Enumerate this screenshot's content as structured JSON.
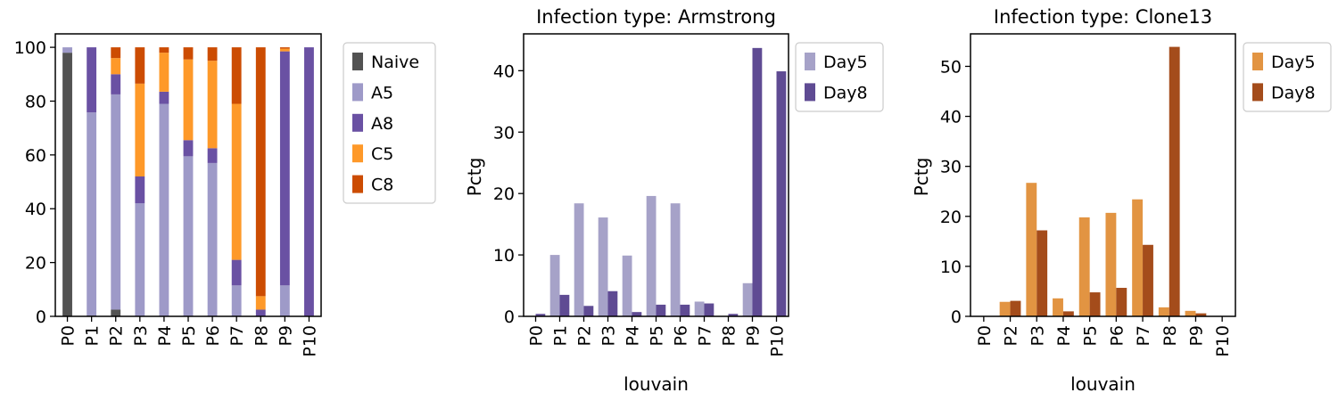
{
  "chart_data": [
    {
      "type": "bar",
      "stacked": true,
      "title": "",
      "xlabel": "",
      "ylabel": "",
      "ylim": [
        0,
        105
      ],
      "yticks": [
        0,
        20,
        40,
        60,
        80,
        100
      ],
      "categories": [
        "P0",
        "P1",
        "P2",
        "P3",
        "P4",
        "P5",
        "P6",
        "P7",
        "P8",
        "P9",
        "P10"
      ],
      "series": [
        {
          "name": "Naive",
          "color": "#525252",
          "values": [
            98,
            0.3,
            2.5,
            0,
            0,
            0,
            0,
            0,
            0,
            0,
            0
          ]
        },
        {
          "name": "A5",
          "color": "#9e9ac8",
          "values": [
            2,
            75.5,
            80,
            42,
            79,
            59.5,
            57,
            11.5,
            0,
            11.5,
            0.2
          ]
        },
        {
          "name": "A8",
          "color": "#6a51a3",
          "values": [
            0,
            24.2,
            7.5,
            10,
            4.5,
            6,
            5.5,
            9.5,
            2.5,
            87,
            99.8
          ]
        },
        {
          "name": "C5",
          "color": "#fe9929",
          "values": [
            0,
            0,
            6,
            34.5,
            14.5,
            30,
            32.5,
            58,
            5,
            1,
            0
          ]
        },
        {
          "name": "C8",
          "color": "#cc4c02",
          "values": [
            0,
            0,
            4,
            13.5,
            2,
            4.5,
            5,
            21,
            92.5,
            0.5,
            0
          ]
        }
      ],
      "legend": "outside-right"
    },
    {
      "type": "bar",
      "title": "Infection type: Armstrong",
      "xlabel": "louvain",
      "ylabel": "Pctg",
      "ylim": [
        0,
        46
      ],
      "yticks": [
        0,
        10,
        20,
        30,
        40
      ],
      "categories": [
        "P0",
        "P1",
        "P2",
        "P3",
        "P4",
        "P5",
        "P6",
        "P7",
        "P8",
        "P9",
        "P10"
      ],
      "series": [
        {
          "name": "Day5",
          "color": "#a6a2c8",
          "values": [
            0,
            10,
            18.4,
            16.1,
            9.9,
            19.6,
            18.4,
            2.4,
            0,
            5.4,
            0
          ]
        },
        {
          "name": "Day8",
          "color": "#5f4b93",
          "values": [
            0.4,
            3.5,
            1.7,
            4.1,
            0.7,
            1.9,
            1.9,
            2.1,
            0.4,
            43.7,
            39.9
          ]
        }
      ],
      "legend": "outside-right"
    },
    {
      "type": "bar",
      "title": "Infection type: Clone13",
      "xlabel": "louvain",
      "ylabel": "Pctg",
      "ylim": [
        0,
        56.5
      ],
      "yticks": [
        0,
        10,
        20,
        30,
        40,
        50
      ],
      "categories": [
        "P0",
        "P2",
        "P3",
        "P4",
        "P5",
        "P6",
        "P7",
        "P8",
        "P9",
        "P10"
      ],
      "series": [
        {
          "name": "Day5",
          "color": "#e29442",
          "values": [
            0,
            2.9,
            26.7,
            3.6,
            19.8,
            20.7,
            23.4,
            1.8,
            1.1,
            0
          ]
        },
        {
          "name": "Day8",
          "color": "#a44c1b",
          "values": [
            0,
            3.1,
            17.2,
            1,
            4.8,
            5.7,
            14.3,
            53.9,
            0.6,
            0
          ]
        }
      ],
      "legend": "outside-right"
    }
  ]
}
